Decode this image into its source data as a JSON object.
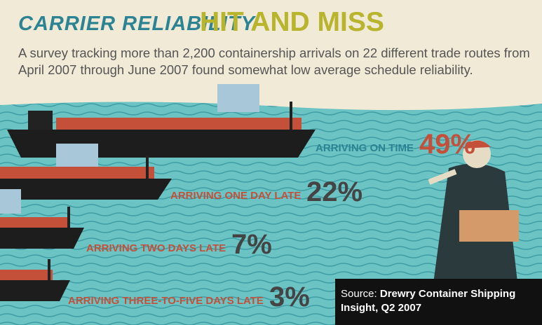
{
  "header": {
    "title_lead": "CARRIER RELIABILITY",
    "title_main": "HIT AND MISS",
    "description": "A survey tracking more than 2,200 containership arrivals on 22 different trade routes from April 2007 through June 2007 found somewhat low average schedule reliability."
  },
  "items": [
    {
      "label": "ARRIVING ON TIME",
      "value": "49%"
    },
    {
      "label": "ARRIVING ONE DAY LATE",
      "value": "22%"
    },
    {
      "label": "ARRIVING TWO DAYS LATE",
      "value": "7%"
    },
    {
      "label": "ARRIVING THREE-TO-FIVE DAYS LATE",
      "value": "3%"
    }
  ],
  "source": {
    "label": "Source:",
    "text": "Drewry Container Shipping Insight, Q2 2007"
  }
}
